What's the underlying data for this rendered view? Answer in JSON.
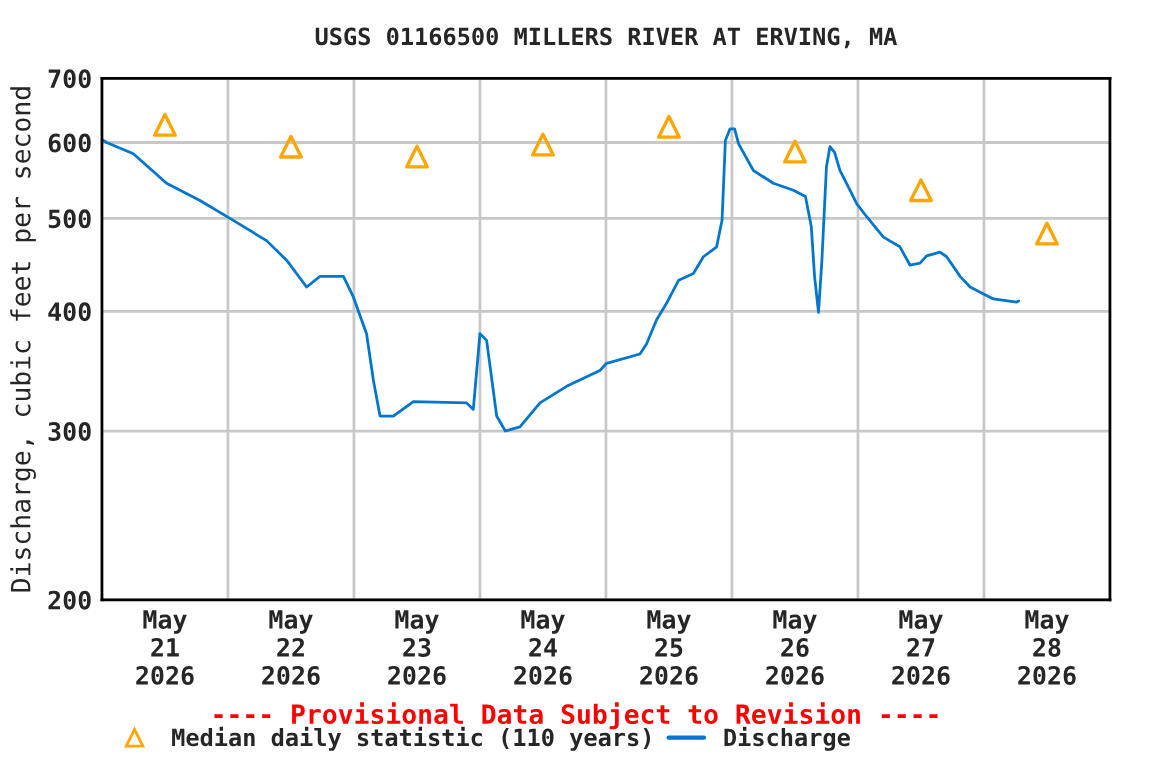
{
  "chart_data": {
    "type": "line",
    "title": "USGS 01166500 MILLERS RIVER AT ERVING, MA",
    "ylabel": "Discharge, cubic feet per second",
    "annotations": [
      "---- Provisional Data Subject to Revision ----"
    ],
    "log": "y",
    "grid": true,
    "legend": "bottom",
    "xlim": [
      "2026-05-21T00:00",
      "2026-05-29T00:00"
    ],
    "xticks": [
      {
        "value": "2026-05-21T12:00",
        "label": "May\n21\n2026"
      },
      {
        "value": "2026-05-22T12:00",
        "label": "May\n22\n2026"
      },
      {
        "value": "2026-05-23T12:00",
        "label": "May\n23\n2026"
      },
      {
        "value": "2026-05-24T12:00",
        "label": "May\n24\n2026"
      },
      {
        "value": "2026-05-25T12:00",
        "label": "May\n25\n2026"
      },
      {
        "value": "2026-05-26T12:00",
        "label": "May\n26\n2026"
      },
      {
        "value": "2026-05-27T12:00",
        "label": "May\n27\n2026"
      },
      {
        "value": "2026-05-28T12:00",
        "label": "May\n28\n2026"
      },
      {
        "value": "2026-05-22T00:00",
        "label": null
      },
      {
        "value": "2026-05-23T00:00",
        "label": null
      },
      {
        "value": "2026-05-24T00:00",
        "label": null
      },
      {
        "value": "2026-05-25T00:00",
        "label": null
      },
      {
        "value": "2026-05-26T00:00",
        "label": null
      },
      {
        "value": "2026-05-27T00:00",
        "label": null
      },
      {
        "value": "2026-05-28T00:00",
        "label": null
      }
    ],
    "ylim": [
      200,
      700
    ],
    "yticks": [
      200,
      300,
      400,
      500,
      600,
      700
    ],
    "series": [
      {
        "name": "Median daily statistic (110 years)",
        "type": "scatter",
        "marker": "triangle",
        "color": "#ffa500",
        "x": [
          "2026-05-21T12:00",
          "2026-05-22T12:00",
          "2026-05-23T12:00",
          "2026-05-24T12:00",
          "2026-05-25T12:00",
          "2026-05-26T12:00",
          "2026-05-27T12:00",
          "2026-05-28T12:00"
        ],
        "values": [
          626,
          594,
          580,
          597,
          623,
          587,
          535,
          482
        ]
      },
      {
        "name": "Discharge",
        "marker": "none",
        "line_style": "solid",
        "color": "#0077cc",
        "x": [
          "2026-05-21T00:16",
          "2026-05-21T00:53",
          "2026-05-21T05:59",
          "2026-05-21T12:18",
          "2026-05-21T18:40",
          "2026-05-22T00:23",
          "2026-05-22T07:21",
          "2026-05-22T11:12",
          "2026-05-22T14:59",
          "2026-05-22T17:32",
          "2026-05-22T21:59",
          "2026-05-22T23:53",
          "2026-05-23T02:24",
          "2026-05-23T03:42",
          "2026-05-23T04:58",
          "2026-05-23T07:30",
          "2026-05-23T11:19",
          "2026-05-23T21:28",
          "2026-05-23T22:44",
          "2026-05-24T00:00",
          "2026-05-24T01:16",
          "2026-05-24T03:11",
          "2026-05-24T04:50",
          "2026-05-24T07:37",
          "2026-05-24T11:26",
          "2026-05-24T16:30",
          "2026-05-24T22:51",
          "2026-05-25T00:07",
          "2026-05-25T06:29",
          "2026-05-25T07:45",
          "2026-05-25T09:39",
          "2026-05-25T11:34",
          "2026-05-25T13:51",
          "2026-05-25T16:39",
          "2026-05-25T18:34",
          "2026-05-25T21:05",
          "2026-05-25T22:07",
          "2026-05-25T22:45",
          "2026-05-25T23:38",
          "2026-05-26T00:30",
          "2026-05-26T01:16",
          "2026-05-26T04:05",
          "2026-05-26T07:53",
          "2026-05-26T11:42",
          "2026-05-26T14:00",
          "2026-05-26T15:07",
          "2026-05-26T15:44",
          "2026-05-26T16:29",
          "2026-05-26T17:08",
          "2026-05-26T18:00",
          "2026-05-26T18:40",
          "2026-05-26T19:33",
          "2026-05-26T20:34",
          "2026-05-26T22:29",
          "2026-05-26T23:45",
          "2026-05-27T01:40",
          "2026-05-27T04:51",
          "2026-05-27T08:00",
          "2026-05-27T09:54",
          "2026-05-27T11:49",
          "2026-05-27T13:05",
          "2026-05-27T15:38",
          "2026-05-27T16:54",
          "2026-05-27T19:27",
          "2026-05-27T21:22",
          "2026-05-27T23:55",
          "2026-05-28T01:49",
          "2026-05-28T06:14",
          "2026-05-28T06:36"
        ],
        "values": [
          603,
          600,
          584,
          544,
          522,
          500,
          474,
          452,
          424,
          435,
          435,
          414,
          379,
          339,
          311,
          311,
          322,
          321,
          316,
          379,
          373,
          311,
          300,
          303,
          321,
          334,
          347,
          353,
          361,
          370,
          392,
          408,
          431,
          438,
          456,
          467,
          498,
          603,
          620,
          620,
          598,
          561,
          544,
          535,
          527,
          490,
          435,
          399,
          452,
          566,
          594,
          586,
          561,
          535,
          518,
          502,
          478,
          467,
          447,
          449,
          457,
          461,
          456,
          435,
          424,
          417,
          412,
          409,
          410
        ]
      }
    ]
  }
}
